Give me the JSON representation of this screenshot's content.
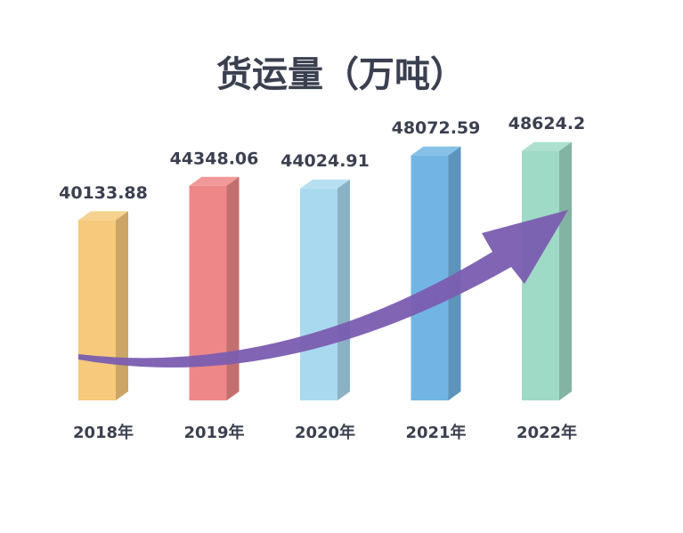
{
  "chart_data": {
    "type": "bar3d",
    "title": "货运量（万吨）",
    "categories": [
      "2018年",
      "2019年",
      "2020年",
      "2021年",
      "2022年"
    ],
    "values": [
      40133.88,
      44348.06,
      44024.91,
      48072.59,
      48624.2
    ],
    "colors": [
      "#f6c97c",
      "#ee8787",
      "#a9d9ef",
      "#72b5e4",
      "#9fdac7"
    ],
    "ylim": [
      18000,
      50000
    ]
  }
}
